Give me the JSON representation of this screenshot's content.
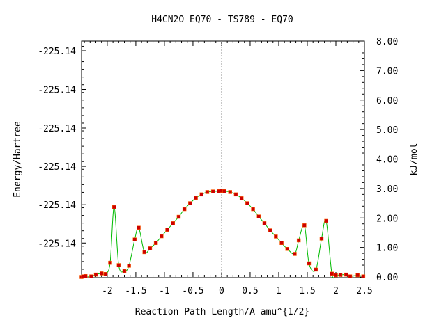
{
  "chart_data": {
    "type": "line",
    "title": "H4CN2O    EQ70 - TS789 - EQ70",
    "xlabel": "Reaction Path Length/A amu^{1/2}",
    "ylabel_left": "Energy/Hartree",
    "ylabel_right": "kJ/mol",
    "xlim": [
      -2.45,
      2.5
    ],
    "ylim_right": [
      0.0,
      8.0
    ],
    "x_ticks": [
      -2,
      -1.5,
      -1,
      -0.5,
      0,
      0.5,
      1,
      1.5,
      2,
      2.5
    ],
    "x_tick_labels": [
      "-2",
      "-1.5",
      "-1",
      "-0.5",
      "0",
      "0.5",
      "1",
      "1.5",
      "2",
      "2.5"
    ],
    "y_right_ticks": [
      0,
      1,
      2,
      3,
      4,
      5,
      6,
      7,
      8
    ],
    "y_right_tick_labels": [
      "0.00",
      "1.00",
      "2.00",
      "3.00",
      "4.00",
      "5.00",
      "6.00",
      "7.00",
      "8.00"
    ],
    "y_left_ticks": [
      1.15,
      2.45,
      3.75,
      5.05,
      6.36,
      7.67
    ],
    "y_left_tick_labels": [
      "-225.14",
      "-225.14",
      "-225.14",
      "-225.14",
      "-225.14",
      "-225.14"
    ],
    "ts_marker_x": 0,
    "grid": false,
    "line_color": "#00bb00",
    "marker_color": "#cc0000",
    "series": [
      {
        "x": [
          -2.45,
          -2.42,
          -2.38,
          -2.28,
          -2.2,
          -2.1,
          -2.03,
          -1.95,
          -1.88,
          -1.8,
          -1.7,
          -1.62,
          -1.52,
          -1.45,
          -1.35,
          -1.25,
          -1.15,
          -1.05,
          -0.95,
          -0.85,
          -0.75,
          -0.65,
          -0.55,
          -0.45,
          -0.35,
          -0.25,
          -0.15,
          -0.05,
          0.0,
          0.05,
          0.15,
          0.25,
          0.35,
          0.45,
          0.55,
          0.65,
          0.75,
          0.85,
          0.95,
          1.05,
          1.15,
          1.28,
          1.35,
          1.45,
          1.53,
          1.65,
          1.75,
          1.83,
          1.93,
          2.0,
          2.08,
          2.18,
          2.25,
          2.38,
          2.48
        ],
        "y": [
          0.0,
          0.02,
          0.03,
          0.02,
          0.08,
          0.12,
          0.1,
          0.48,
          2.37,
          0.4,
          0.2,
          0.38,
          1.27,
          1.67,
          0.84,
          0.97,
          1.15,
          1.38,
          1.6,
          1.82,
          2.04,
          2.3,
          2.5,
          2.68,
          2.8,
          2.88,
          2.9,
          2.91,
          2.92,
          2.91,
          2.88,
          2.8,
          2.67,
          2.5,
          2.3,
          2.05,
          1.82,
          1.58,
          1.37,
          1.15,
          0.95,
          0.78,
          1.24,
          1.75,
          0.46,
          0.25,
          1.3,
          1.9,
          0.11,
          0.06,
          0.07,
          0.08,
          0.02,
          0.06,
          0.02
        ]
      }
    ]
  }
}
